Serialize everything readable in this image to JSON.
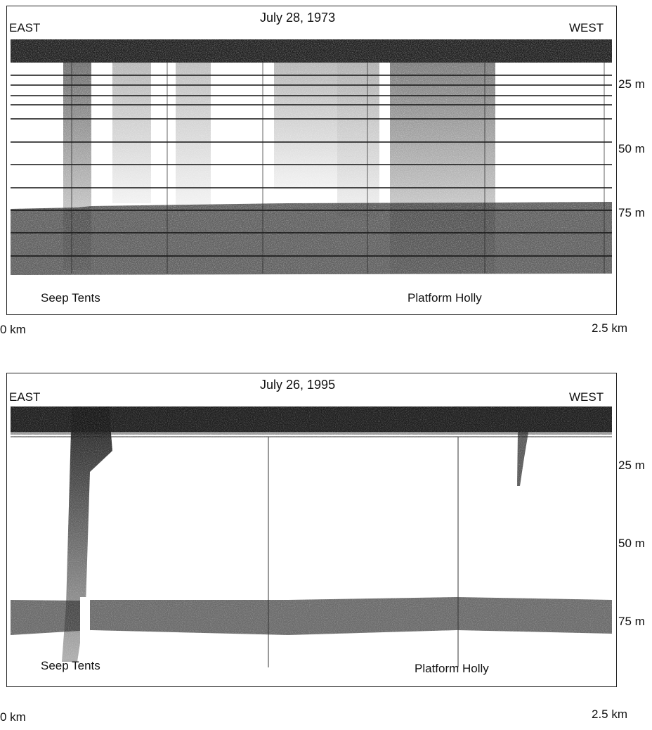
{
  "panels": [
    {
      "title": "July 28, 1973",
      "left_label": "EAST",
      "right_label": "WEST",
      "feature_labels": {
        "seep": "Seep Tents",
        "platform": "Platform Holly"
      },
      "depth_ticks": [
        "25 m",
        "50 m",
        "75 m"
      ],
      "distance": {
        "start": "0 km",
        "end": "2.5 km"
      }
    },
    {
      "title": "July 26, 1995",
      "left_label": "EAST",
      "right_label": "WEST",
      "feature_labels": {
        "seep": "Seep Tents",
        "platform": "Platform Holly"
      },
      "depth_ticks": [
        "25 m",
        "50 m",
        "75 m"
      ],
      "distance": {
        "start": "0 km",
        "end": "2.5 km"
      }
    }
  ],
  "colors": {
    "ink": "#1a1a1a",
    "paper": "#ffffff"
  }
}
